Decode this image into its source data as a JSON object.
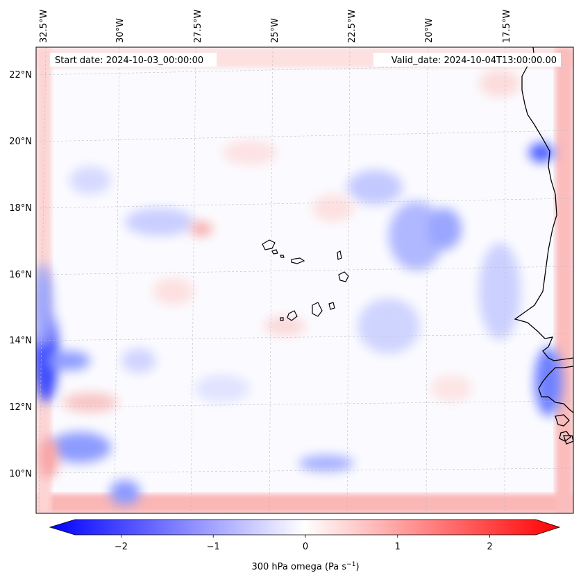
{
  "header": {
    "start_date": "Start date: 2024-10-03_00:00:00",
    "valid_date": "Valid_date: 2024-10-04T13:00:00.00"
  },
  "axes": {
    "lon_labels": [
      "32.5°W",
      "30°W",
      "27.5°W",
      "25°W",
      "22.5°W",
      "20°W",
      "17.5°W"
    ],
    "lat_labels": [
      "22°N",
      "20°N",
      "18°N",
      "16°N",
      "14°N",
      "12°N",
      "10°N"
    ]
  },
  "colorbar": {
    "label_prefix": "300 hPa omega (Pa s",
    "label_sup": "−1",
    "label_suffix": ")",
    "tick_labels": [
      "−2",
      "−1",
      "0",
      "1",
      "2"
    ],
    "tick_values": [
      -2,
      -1,
      0,
      1,
      2
    ],
    "range": [
      -2.5,
      2.5
    ],
    "colors": {
      "min": "#0000ff",
      "mid": "#ffffff",
      "max": "#ff0000"
    }
  }
}
